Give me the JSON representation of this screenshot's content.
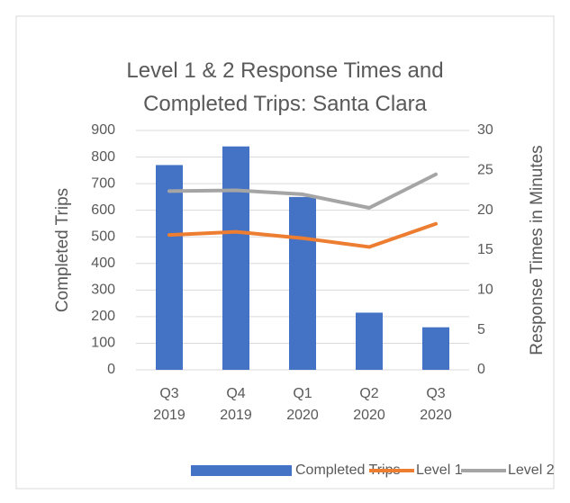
{
  "chart_data": {
    "type": "bar",
    "title": "Level 1 & 2 Response Times and Completed Trips: Santa Clara",
    "y_label": "Completed Trips",
    "y2_label": "Response Times in Minutes",
    "categories": [
      "Q3 2019",
      "Q4 2019",
      "Q1 2020",
      "Q2 2020",
      "Q3 2020"
    ],
    "series": [
      {
        "name": "Completed Trips",
        "type": "bar",
        "color": "#4472c4",
        "axis": "y",
        "values": [
          770,
          840,
          650,
          215,
          160
        ]
      },
      {
        "name": "Level 1",
        "type": "line",
        "color": "#ed7d31",
        "axis": "y2",
        "values": [
          16.9,
          17.3,
          16.5,
          15.4,
          18.3
        ]
      },
      {
        "name": "Level 2",
        "type": "line",
        "color": "#a5a5a5",
        "axis": "y2",
        "values": [
          22.4,
          22.5,
          22.0,
          20.3,
          24.5
        ]
      }
    ],
    "ylim": [
      0,
      900
    ],
    "yticks": [
      0,
      100,
      200,
      300,
      400,
      500,
      600,
      700,
      800,
      900
    ],
    "y2lim": [
      0,
      30
    ],
    "y2ticks": [
      0,
      5,
      10,
      15,
      20,
      25,
      30
    ],
    "grid": true,
    "legend": "bottom"
  }
}
